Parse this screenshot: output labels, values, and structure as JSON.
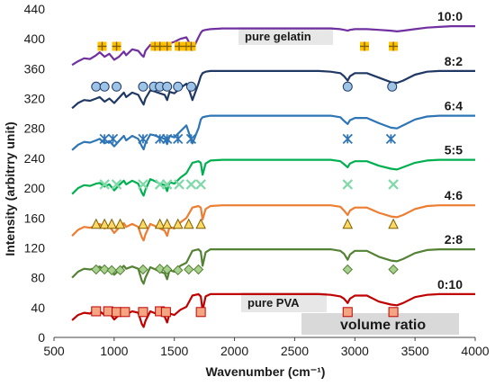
{
  "chart_data": {
    "type": "line",
    "title": "",
    "xlabel": "Wavenumber (cm⁻¹)",
    "ylabel": "Intensity (arbitrry unit)",
    "xlim": [
      500,
      4000
    ],
    "ylim": [
      0,
      440
    ],
    "xticks": [
      500,
      1000,
      1500,
      2000,
      2500,
      3000,
      3500,
      4000
    ],
    "yticks": [
      0,
      40,
      80,
      120,
      160,
      200,
      240,
      280,
      320,
      360,
      400,
      440
    ],
    "grid": false,
    "annotations": [
      "pure gelatin",
      "pure PVA",
      "volume ratio"
    ],
    "series": [
      {
        "name": "0:10",
        "color": "#c00000",
        "marker": "square",
        "marker_color": "#f4a582",
        "x": [
          650,
          700,
          750,
          800,
          830,
          850,
          880,
          920,
          960,
          1000,
          1040,
          1080,
          1100,
          1150,
          1200,
          1230,
          1245,
          1260,
          1300,
          1330,
          1380,
          1420,
          1440,
          1460,
          1500,
          1550,
          1600,
          1650,
          1700,
          1720,
          1735,
          1760,
          1800,
          1900,
          2000,
          2100,
          2200,
          2300,
          2400,
          2500,
          2600,
          2700,
          2800,
          2880,
          2910,
          2940,
          2960,
          3000,
          3100,
          3200,
          3300,
          3350,
          3400,
          3500,
          3600,
          3700,
          3800,
          3900,
          4000
        ],
        "y": [
          23,
          30,
          33,
          32,
          36,
          33,
          35,
          30,
          33,
          24,
          30,
          36,
          31,
          35,
          33,
          18,
          14,
          22,
          35,
          33,
          30,
          28,
          20,
          32,
          30,
          37,
          41,
          56,
          58,
          55,
          36,
          55,
          58,
          58,
          58,
          58,
          58,
          58,
          58,
          58,
          58,
          58,
          57,
          55,
          52,
          46,
          52,
          56,
          56,
          48,
          44,
          43,
          46,
          54,
          57,
          58,
          58,
          58,
          58
        ],
        "markers_x": [
          850,
          950,
          1020,
          1090,
          1240,
          1380,
          1430,
          1720,
          2940,
          3320
        ],
        "markers_y": [
          35,
          35,
          34,
          34,
          34,
          35,
          34,
          34,
          34,
          34
        ]
      },
      {
        "name": "2:8",
        "color": "#548235",
        "marker": "diamond",
        "marker_color": "#a9d18e",
        "x": [
          650,
          700,
          750,
          800,
          850,
          880,
          920,
          960,
          1000,
          1040,
          1080,
          1100,
          1150,
          1200,
          1230,
          1245,
          1260,
          1300,
          1330,
          1380,
          1420,
          1440,
          1460,
          1500,
          1550,
          1600,
          1650,
          1700,
          1720,
          1735,
          1760,
          1800,
          1900,
          2000,
          2100,
          2200,
          2300,
          2400,
          2500,
          2600,
          2700,
          2800,
          2880,
          2910,
          2940,
          2960,
          3000,
          3100,
          3200,
          3300,
          3350,
          3400,
          3500,
          3600,
          3700,
          3800,
          3900,
          4000
        ],
        "y": [
          80,
          88,
          92,
          91,
          93,
          95,
          90,
          92,
          84,
          90,
          96,
          92,
          95,
          92,
          76,
          72,
          80,
          94,
          92,
          88,
          86,
          78,
          90,
          88,
          96,
          100,
          116,
          118,
          115,
          96,
          114,
          118,
          118,
          118,
          118,
          118,
          118,
          118,
          118,
          118,
          118,
          118,
          116,
          112,
          104,
          111,
          116,
          116,
          108,
          103,
          102,
          105,
          113,
          117,
          118,
          118,
          118,
          118
        ],
        "markers_x": [
          850,
          920,
          980,
          1050,
          1240,
          1380,
          1440,
          1530,
          1620,
          1700,
          2940,
          3320
        ],
        "markers_y": [
          91,
          91,
          90,
          90,
          91,
          92,
          91,
          90,
          91,
          91,
          91,
          91
        ]
      },
      {
        "name": "4:6",
        "color": "#ed7d31",
        "marker": "triangle",
        "marker_color": "#ffd966",
        "x": [
          650,
          700,
          750,
          800,
          850,
          880,
          920,
          960,
          1000,
          1040,
          1080,
          1100,
          1150,
          1200,
          1230,
          1245,
          1260,
          1300,
          1330,
          1380,
          1420,
          1440,
          1460,
          1500,
          1550,
          1600,
          1650,
          1700,
          1720,
          1735,
          1760,
          1800,
          1900,
          2000,
          2100,
          2200,
          2300,
          2400,
          2500,
          2600,
          2700,
          2800,
          2880,
          2910,
          2940,
          2960,
          3000,
          3100,
          3200,
          3300,
          3350,
          3400,
          3500,
          3600,
          3700,
          3800,
          3900,
          4000
        ],
        "y": [
          136,
          144,
          148,
          147,
          150,
          152,
          146,
          149,
          140,
          147,
          153,
          148,
          152,
          148,
          134,
          130,
          138,
          152,
          150,
          146,
          143,
          136,
          148,
          146,
          154,
          160,
          174,
          176,
          174,
          158,
          172,
          176,
          177,
          177,
          177,
          177,
          177,
          177,
          177,
          177,
          177,
          177,
          175,
          170,
          164,
          170,
          174,
          174,
          167,
          162,
          161,
          164,
          172,
          176,
          177,
          177,
          177,
          177
        ],
        "markers_x": [
          850,
          920,
          980,
          1050,
          1240,
          1380,
          1440,
          1530,
          1620,
          1720,
          2940,
          3320
        ],
        "markers_y": [
          151,
          151,
          151,
          151,
          151,
          151,
          151,
          151,
          151,
          151,
          151,
          151
        ]
      },
      {
        "name": "5:5",
        "color": "#00b050",
        "marker": "x",
        "marker_color": "#7fd9a8",
        "x": [
          650,
          700,
          750,
          800,
          850,
          880,
          920,
          960,
          1000,
          1040,
          1080,
          1100,
          1150,
          1200,
          1230,
          1245,
          1260,
          1300,
          1330,
          1380,
          1420,
          1440,
          1460,
          1500,
          1550,
          1600,
          1650,
          1700,
          1720,
          1735,
          1760,
          1800,
          1900,
          2000,
          2100,
          2200,
          2300,
          2400,
          2500,
          2600,
          2700,
          2800,
          2880,
          2910,
          2940,
          2960,
          3000,
          3100,
          3200,
          3300,
          3350,
          3400,
          3500,
          3600,
          3700,
          3800,
          3900,
          4000
        ],
        "y": [
          192,
          200,
          204,
          203,
          206,
          207,
          202,
          205,
          197,
          204,
          210,
          205,
          210,
          206,
          194,
          190,
          198,
          212,
          210,
          206,
          204,
          196,
          208,
          206,
          214,
          220,
          234,
          236,
          234,
          218,
          233,
          237,
          238,
          238,
          238,
          238,
          238,
          238,
          238,
          238,
          238,
          238,
          236,
          232,
          228,
          233,
          236,
          236,
          230,
          226,
          225,
          228,
          234,
          237,
          238,
          238,
          238,
          238
        ],
        "markers_x": [
          920,
          1020,
          1240,
          1380,
          1440,
          1540,
          1640,
          1720,
          2940,
          3320
        ],
        "markers_y": [
          205,
          205,
          205,
          205,
          205,
          205,
          205,
          205,
          205,
          205
        ]
      },
      {
        "name": "6:4",
        "color": "#2e75b6",
        "marker": "star",
        "marker_color": "#9dc3e6",
        "x": [
          650,
          700,
          750,
          800,
          850,
          880,
          920,
          960,
          1000,
          1040,
          1080,
          1100,
          1150,
          1200,
          1230,
          1245,
          1260,
          1300,
          1330,
          1380,
          1420,
          1440,
          1460,
          1500,
          1550,
          1600,
          1650,
          1700,
          1720,
          1735,
          1760,
          1800,
          1900,
          2000,
          2100,
          2200,
          2300,
          2400,
          2500,
          2600,
          2700,
          2800,
          2880,
          2910,
          2940,
          2960,
          3000,
          3100,
          3200,
          3300,
          3350,
          3400,
          3500,
          3600,
          3700,
          3800,
          3900,
          4000
        ],
        "y": [
          251,
          258,
          262,
          261,
          264,
          266,
          260,
          263,
          256,
          263,
          270,
          264,
          270,
          266,
          256,
          252,
          260,
          272,
          271,
          268,
          266,
          259,
          270,
          268,
          276,
          284,
          260,
          280,
          292,
          295,
          296,
          297,
          297,
          297,
          297,
          297,
          297,
          297,
          297,
          297,
          297,
          297,
          295,
          290,
          286,
          291,
          294,
          294,
          287,
          281,
          280,
          284,
          292,
          296,
          297,
          297,
          297,
          297
        ],
        "markers_x": [
          920,
          990,
          1240,
          1380,
          1440,
          1530,
          1640,
          2940,
          3300
        ],
        "markers_y": [
          266,
          266,
          266,
          266,
          266,
          266,
          266,
          266,
          266
        ]
      },
      {
        "name": "8:2",
        "color": "#1f3864",
        "marker": "circle",
        "marker_color": "#9dc3e6",
        "x": [
          650,
          700,
          750,
          800,
          850,
          880,
          920,
          960,
          1000,
          1040,
          1080,
          1100,
          1150,
          1200,
          1230,
          1245,
          1260,
          1300,
          1330,
          1380,
          1420,
          1440,
          1460,
          1500,
          1550,
          1600,
          1630,
          1650,
          1700,
          1720,
          1735,
          1760,
          1800,
          1900,
          2000,
          2100,
          2200,
          2300,
          2400,
          2500,
          2600,
          2700,
          2800,
          2880,
          2910,
          2940,
          2960,
          3000,
          3100,
          3200,
          3300,
          3350,
          3400,
          3500,
          3600,
          3700,
          3800,
          3900,
          4000
        ],
        "y": [
          307,
          314,
          318,
          317,
          320,
          322,
          316,
          320,
          314,
          321,
          328,
          322,
          328,
          325,
          316,
          312,
          320,
          331,
          330,
          327,
          325,
          318,
          329,
          327,
          334,
          340,
          328,
          318,
          340,
          350,
          354,
          356,
          357,
          357,
          357,
          357,
          357,
          357,
          357,
          357,
          357,
          357,
          356,
          354,
          350,
          344,
          350,
          354,
          354,
          348,
          342,
          341,
          344,
          352,
          356,
          357,
          357,
          357,
          357
        ],
        "markers_x": [
          850,
          920,
          1020,
          1240,
          1330,
          1380,
          1440,
          1530,
          1640,
          2940,
          3310
        ],
        "markers_y": [
          336,
          336,
          336,
          336,
          336,
          336,
          336,
          336,
          336,
          336,
          336
        ]
      },
      {
        "name": "10:0",
        "color": "#7030a0",
        "marker": "plus",
        "marker_color": "#ffc000",
        "x": [
          650,
          700,
          750,
          800,
          850,
          880,
          920,
          960,
          1000,
          1040,
          1080,
          1100,
          1150,
          1200,
          1230,
          1245,
          1260,
          1300,
          1330,
          1380,
          1420,
          1440,
          1460,
          1500,
          1550,
          1600,
          1630,
          1650,
          1700,
          1720,
          1735,
          1760,
          1800,
          1900,
          2000,
          2100,
          2200,
          2300,
          2400,
          2500,
          2600,
          2700,
          2800,
          2880,
          2910,
          2940,
          2960,
          3000,
          3100,
          3200,
          3300,
          3350,
          3400,
          3500,
          3600,
          3700,
          3800,
          3900,
          4000
        ],
        "y": [
          365,
          370,
          374,
          373,
          378,
          382,
          376,
          380,
          372,
          376,
          383,
          378,
          386,
          384,
          378,
          376,
          384,
          392,
          392,
          391,
          390,
          386,
          394,
          396,
          400,
          402,
          393,
          385,
          402,
          408,
          411,
          412,
          413,
          414,
          414,
          414,
          414,
          414,
          414,
          414,
          414,
          414,
          414,
          413,
          412,
          411,
          412,
          413,
          413,
          412,
          411,
          410,
          411,
          413,
          415,
          416,
          417,
          417,
          417
        ],
        "markers_x": [
          900,
          1020,
          1340,
          1380,
          1440,
          1540,
          1600,
          1640,
          3080,
          3320
        ],
        "markers_y": [
          390,
          390,
          390,
          390,
          390,
          390,
          390,
          390,
          390,
          390
        ]
      }
    ]
  }
}
